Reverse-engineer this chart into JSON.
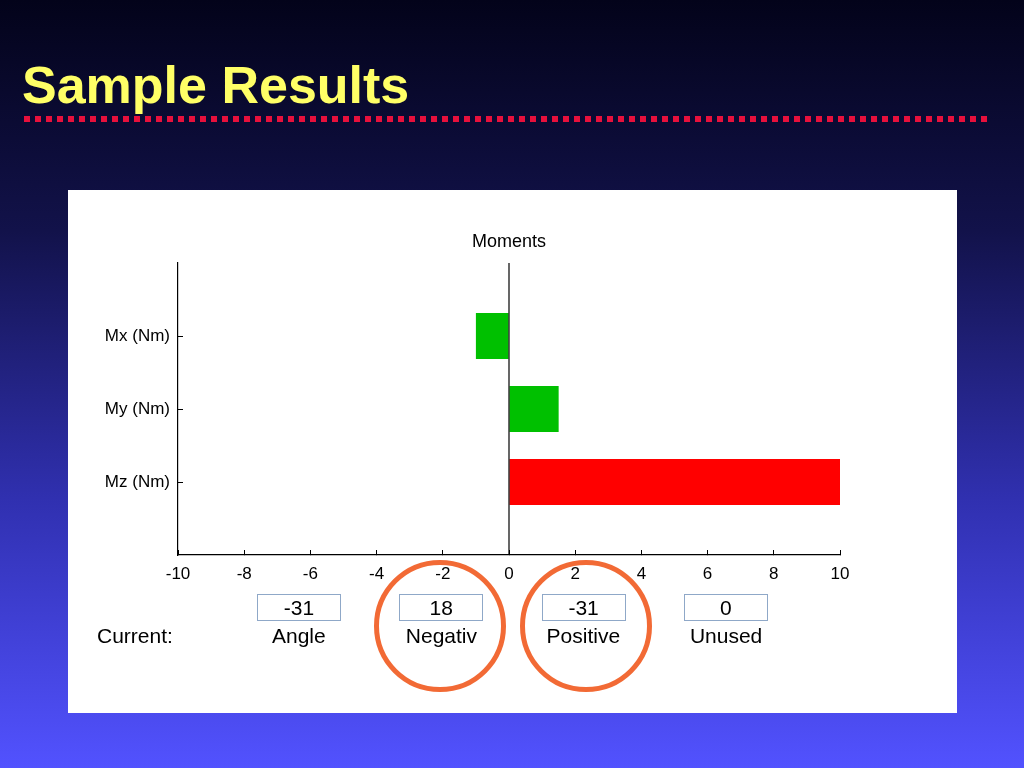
{
  "chart_data": {
    "type": "bar",
    "orientation": "horizontal",
    "title": "Sample Results",
    "subtitle": "Moments",
    "categories": [
      "Mx (Nm)",
      "My (Nm)",
      "Mz (Nm)"
    ],
    "values": [
      -1,
      1.5,
      10
    ],
    "colors": [
      "#00c000",
      "#00c000",
      "#ff0000"
    ],
    "xlim": [
      -10,
      10
    ],
    "xticks": [
      -10,
      -8,
      -6,
      -4,
      -2,
      0,
      2,
      4,
      6,
      8,
      10
    ],
    "grid": false,
    "legend": false,
    "ref_lines": [
      {
        "axis": "x",
        "value": 0,
        "color": "#000000"
      }
    ],
    "annotations": [
      "Current:",
      "-31",
      "Angle",
      "18",
      "Negativ",
      "-31",
      "Positive",
      "0",
      "Unused"
    ]
  }
}
